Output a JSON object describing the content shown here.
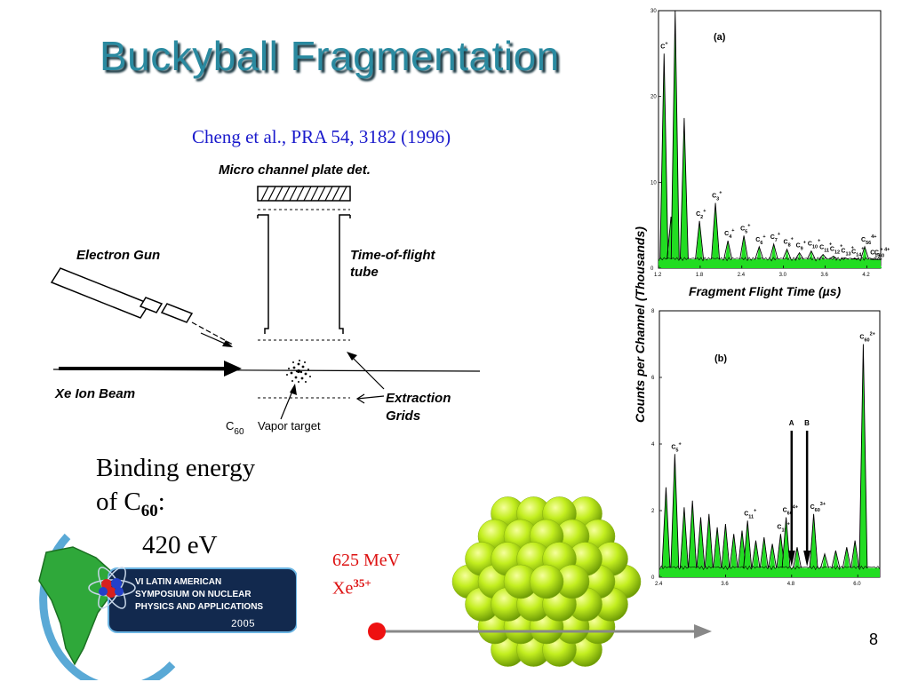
{
  "slide": {
    "title": "Buckyball Fragmentation",
    "citation": "Cheng et al., PRA 54, 3182 (1996)",
    "page_number": "8"
  },
  "schematic": {
    "mcp_label": "Micro channel plate det.",
    "tof_label_1": "Time-of-flight",
    "tof_label_2": "tube",
    "gun_label": "Electron Gun",
    "beam_label": "Xe Ion Beam",
    "grids_label_1": "Extraction",
    "grids_label_2": "Grids",
    "target_c": "C",
    "target_sub": "60",
    "target_label": "Vapor  target"
  },
  "binding": {
    "line1": "Binding energy",
    "line2_prefix": "of C",
    "line2_sub": "60",
    "line2_suffix": ":",
    "value": "420 eV"
  },
  "beam": {
    "energy": "625 MeV",
    "ion": "Xe",
    "charge": "35+",
    "dot_color": "#ee1111",
    "arrow_color": "#888888"
  },
  "logo": {
    "line1": "VI LATIN AMERICAN",
    "line2": "SYMPOSIUM ON NUCLEAR",
    "line3": "PHYSICS AND APPLICATIONS",
    "line4": "2005"
  },
  "chart_data": [
    {
      "type": "line",
      "panel_label": "(a)",
      "xlabel": "Fragment Flight Time (µs)",
      "ylabel": "Counts per Channel (Thousands)",
      "xlim": [
        1.2,
        4.4
      ],
      "ylim": [
        0,
        30
      ],
      "x_ticks": [
        "1.2",
        "1.8",
        "2.4",
        "3.0",
        "3.6",
        "4.2"
      ],
      "y_ticks": [
        "0",
        "10",
        "20",
        "30"
      ],
      "fill_color": "#22dd22",
      "peaks": [
        {
          "x": 1.28,
          "y": 25,
          "label": "C",
          "charge": "+"
        },
        {
          "x": 1.38,
          "y": 6
        },
        {
          "x": 1.44,
          "y": 30
        },
        {
          "x": 1.57,
          "y": 17.5
        },
        {
          "x": 1.79,
          "y": 5.5,
          "label": "C2",
          "charge": "+"
        },
        {
          "x": 2.02,
          "y": 7.6,
          "label": "C3",
          "charge": "+"
        },
        {
          "x": 2.2,
          "y": 3.2,
          "label": "C4",
          "charge": "+"
        },
        {
          "x": 2.43,
          "y": 3.8,
          "label": "C5",
          "charge": "+"
        },
        {
          "x": 2.65,
          "y": 2.5,
          "label": "C6",
          "charge": "+"
        },
        {
          "x": 2.86,
          "y": 2.8,
          "label": "C7",
          "charge": "+"
        },
        {
          "x": 3.05,
          "y": 2.2,
          "label": "C8",
          "charge": "+"
        },
        {
          "x": 3.23,
          "y": 1.8,
          "label": "C9",
          "charge": "+"
        },
        {
          "x": 3.4,
          "y": 2,
          "label": "C10",
          "charge": "+"
        },
        {
          "x": 3.57,
          "y": 1.6,
          "label": "C11",
          "charge": "+"
        },
        {
          "x": 3.72,
          "y": 1.4,
          "label": "C12",
          "charge": "+"
        },
        {
          "x": 3.88,
          "y": 1.2,
          "label": "C13",
          "charge": "+"
        },
        {
          "x": 4.03,
          "y": 1.1,
          "label": "C14",
          "charge": "+"
        },
        {
          "x": 4.17,
          "y": 2.5,
          "label": "C56",
          "charge": "4+"
        },
        {
          "x": 4.3,
          "y": 1,
          "label": "C15",
          "charge": "+"
        },
        {
          "x": 4.36,
          "y": 1,
          "label": "C60",
          "charge": "4+"
        }
      ]
    },
    {
      "type": "line",
      "panel_label": "(b)",
      "xlim": [
        2.4,
        6.4
      ],
      "ylim": [
        0,
        8
      ],
      "x_ticks": [
        "2.4",
        "3.6",
        "4.8",
        "6.0"
      ],
      "y_ticks": [
        "0",
        "2",
        "4",
        "6",
        "8"
      ],
      "fill_color": "#22dd22",
      "arrows": [
        {
          "label": "A",
          "x": 4.8
        },
        {
          "label": "B",
          "x": 5.08
        }
      ],
      "peaks": [
        {
          "x": 2.52,
          "y": 2.7
        },
        {
          "x": 2.68,
          "y": 3.7,
          "label": "C5",
          "charge": "+"
        },
        {
          "x": 2.85,
          "y": 2.1
        },
        {
          "x": 3.0,
          "y": 2.3
        },
        {
          "x": 3.15,
          "y": 1.8
        },
        {
          "x": 3.3,
          "y": 1.9
        },
        {
          "x": 3.45,
          "y": 1.5
        },
        {
          "x": 3.6,
          "y": 1.6
        },
        {
          "x": 3.75,
          "y": 1.3
        },
        {
          "x": 3.9,
          "y": 1.4
        },
        {
          "x": 4.0,
          "y": 1.7,
          "label": "C11",
          "charge": "+"
        },
        {
          "x": 4.15,
          "y": 1.1
        },
        {
          "x": 4.3,
          "y": 1.2
        },
        {
          "x": 4.45,
          "y": 1
        },
        {
          "x": 4.6,
          "y": 1.3,
          "label": "C15",
          "charge": "+"
        },
        {
          "x": 4.7,
          "y": 1.8,
          "label": "C60",
          "charge": "4+"
        },
        {
          "x": 4.9,
          "y": 0.9
        },
        {
          "x": 5.2,
          "y": 1.9,
          "label": "C60",
          "charge": "3+"
        },
        {
          "x": 5.4,
          "y": 0.7
        },
        {
          "x": 5.6,
          "y": 0.8
        },
        {
          "x": 5.8,
          "y": 0.9
        },
        {
          "x": 5.95,
          "y": 1.1
        },
        {
          "x": 6.1,
          "y": 7,
          "label": "C60",
          "charge": "2+"
        }
      ]
    }
  ]
}
